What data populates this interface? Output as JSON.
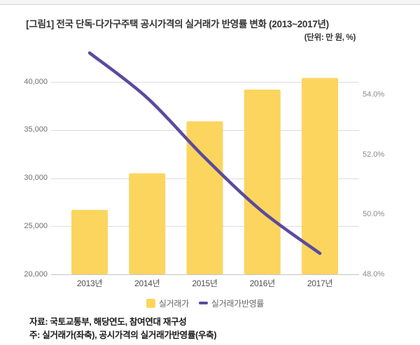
{
  "header": {
    "title": "[그림1] 전국 단독·다가구주택 공시가격의 실거래가 반영률 변화 (2013~2017년)",
    "unit_label": "(단위: 만 원, %)"
  },
  "chart_data": {
    "type": "bar",
    "combo": "bar+line",
    "title": "[그림1] 전국 단독·다가구주택 공시가격의 실거래가 반영률 변화 (2013~2017년)",
    "categories": [
      "2013년",
      "2014년",
      "2015년",
      "2016년",
      "2017년"
    ],
    "series": [
      {
        "name": "실거래가",
        "type": "bar",
        "axis": "left",
        "color": "#FBD55E",
        "values": [
          26700,
          30500,
          35900,
          39200,
          40400
        ]
      },
      {
        "name": "실거래가반영률",
        "type": "line",
        "axis": "right",
        "color": "#5B4A9E",
        "values": [
          55.4,
          53.9,
          51.9,
          50.1,
          48.7
        ]
      }
    ],
    "left_axis": {
      "ticks": [
        20000,
        25000,
        30000,
        35000,
        40000
      ],
      "tick_labels": [
        "20,000",
        "25,000",
        "30,000",
        "35,000",
        "40,000"
      ],
      "range": [
        20000,
        40000
      ]
    },
    "right_axis": {
      "ticks": [
        48,
        50,
        52,
        54
      ],
      "tick_labels": [
        "48.0%",
        "50.0%",
        "52.0%",
        "54.0%"
      ],
      "range": [
        48,
        54
      ]
    },
    "grid": true,
    "legend_position": "bottom"
  },
  "legend": {
    "items": [
      {
        "label": "실거래가",
        "swatch": "yellow-square"
      },
      {
        "label": "실거래가반영률",
        "swatch": "purple-dash"
      }
    ]
  },
  "footer": {
    "source": "자료: 국토교통부, 해당연도, 참여연대 재구성",
    "note": "주: 실거래가(좌축), 공시가격의 실거래가반영률(우축)"
  }
}
